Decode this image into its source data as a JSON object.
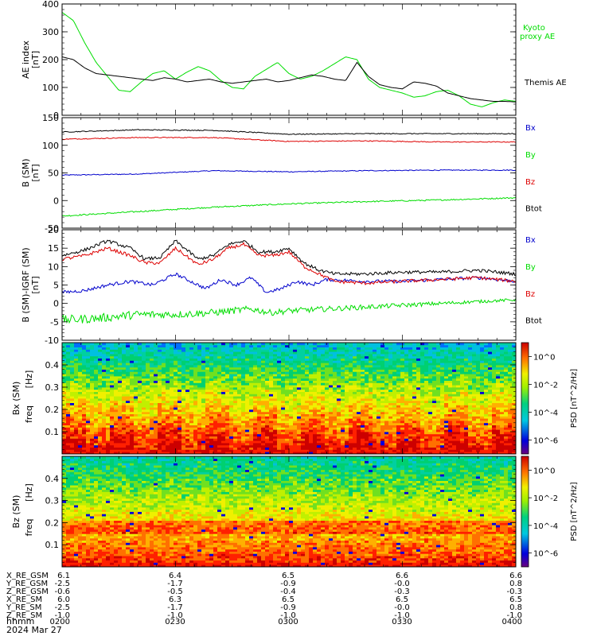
{
  "figure": {
    "date_label": "2024 Mar 27",
    "time_row_label": "hhmm"
  },
  "chart_data": [
    {
      "type": "line",
      "ylabel": "AE index",
      "yunit": "[nT]",
      "ylim": [
        0,
        400
      ],
      "yticks": [
        0,
        100,
        200,
        300,
        400
      ],
      "xlim": [
        0,
        120
      ],
      "series": [
        {
          "name": "Kyoto proxy AE",
          "label_lines": [
            "Kyoto",
            "proxy AE"
          ],
          "color": "#00dd00",
          "x": [
            0,
            3,
            6,
            9,
            12,
            15,
            18,
            21,
            24,
            27,
            30,
            33,
            36,
            39,
            42,
            45,
            48,
            51,
            54,
            57,
            60,
            63,
            66,
            69,
            72,
            75,
            78,
            81,
            84,
            87,
            90,
            93,
            96,
            99,
            102,
            105,
            108,
            111,
            114,
            117,
            120
          ],
          "y": [
            370,
            340,
            260,
            190,
            140,
            90,
            85,
            120,
            150,
            160,
            130,
            155,
            175,
            160,
            125,
            100,
            95,
            140,
            165,
            190,
            150,
            130,
            140,
            160,
            185,
            210,
            200,
            130,
            100,
            90,
            80,
            65,
            70,
            85,
            90,
            70,
            40,
            30,
            45,
            55,
            50
          ]
        },
        {
          "name": "Themis AE",
          "label_lines": [
            "Themis AE"
          ],
          "color": "#000000",
          "x": [
            0,
            3,
            6,
            9,
            12,
            15,
            18,
            21,
            24,
            27,
            30,
            33,
            36,
            39,
            42,
            45,
            48,
            51,
            54,
            57,
            60,
            63,
            66,
            69,
            72,
            75,
            78,
            81,
            84,
            87,
            90,
            93,
            96,
            99,
            102,
            105,
            108,
            111,
            114,
            117,
            120
          ],
          "y": [
            210,
            200,
            170,
            150,
            145,
            140,
            135,
            130,
            125,
            135,
            130,
            120,
            125,
            130,
            120,
            115,
            120,
            125,
            130,
            120,
            125,
            135,
            145,
            140,
            130,
            125,
            190,
            140,
            110,
            100,
            95,
            120,
            115,
            105,
            80,
            70,
            60,
            55,
            50,
            50,
            48
          ]
        }
      ]
    },
    {
      "type": "line",
      "ylabel": "B (SM)",
      "yunit": "[nT]",
      "ylim": [
        -50,
        150
      ],
      "yticks": [
        -50,
        0,
        50,
        100,
        150
      ],
      "xlim": [
        0,
        120
      ],
      "series": [
        {
          "name": "Bx",
          "color": "#0000cc",
          "x": [
            0,
            20,
            40,
            60,
            80,
            100,
            120
          ],
          "y": [
            46,
            48,
            54,
            52,
            54,
            55,
            55
          ]
        },
        {
          "name": "By",
          "color": "#00dd00",
          "x": [
            0,
            20,
            40,
            60,
            80,
            100,
            120
          ],
          "y": [
            -28,
            -20,
            -12,
            -6,
            -2,
            1,
            5
          ]
        },
        {
          "name": "Bz",
          "color": "#dd0000",
          "x": [
            0,
            20,
            40,
            60,
            80,
            100,
            120
          ],
          "y": [
            111,
            114,
            114,
            107,
            108,
            106,
            106
          ]
        },
        {
          "name": "Btot",
          "color": "#000000",
          "x": [
            0,
            20,
            40,
            60,
            80,
            100,
            120
          ],
          "y": [
            124,
            128,
            127,
            120,
            121,
            121,
            121
          ]
        }
      ]
    },
    {
      "type": "line",
      "ylabel": "B (SM)-IGRF (SM)",
      "yunit": "[nT]",
      "ylim": [
        -10,
        20
      ],
      "yticks": [
        -10,
        -5,
        0,
        5,
        10,
        15,
        20
      ],
      "xlim": [
        0,
        120
      ],
      "series": [
        {
          "name": "Bx",
          "color": "#0000cc",
          "x": [
            0,
            6,
            12,
            18,
            24,
            30,
            34,
            38,
            42,
            46,
            50,
            54,
            58,
            62,
            66,
            70,
            80,
            90,
            100,
            110,
            120
          ],
          "y": [
            3,
            3.5,
            5,
            6,
            5,
            8,
            6,
            4,
            6.5,
            5,
            7,
            3,
            4,
            6,
            5,
            6.5,
            6,
            6,
            6.5,
            7,
            6
          ]
        },
        {
          "name": "By",
          "color": "#00dd00",
          "x": [
            0,
            10,
            20,
            30,
            40,
            50,
            55,
            60,
            70,
            80,
            90,
            100,
            110,
            120
          ],
          "y": [
            -4.5,
            -4,
            -3,
            -3,
            -2.5,
            -1.5,
            -2.5,
            -2,
            -1.5,
            -1,
            -0.5,
            0,
            0.5,
            1
          ]
        },
        {
          "name": "Bz",
          "color": "#dd0000",
          "x": [
            0,
            6,
            12,
            18,
            22,
            26,
            30,
            36,
            40,
            44,
            48,
            52,
            56,
            60,
            64,
            68,
            72,
            80,
            90,
            100,
            110,
            120
          ],
          "y": [
            12,
            13,
            15,
            13,
            11,
            11,
            15,
            10.5,
            12,
            15,
            16,
            13,
            13,
            14,
            10,
            8,
            6,
            5.5,
            6,
            6.5,
            7,
            6
          ]
        },
        {
          "name": "Btot",
          "color": "#000000",
          "x": [
            0,
            6,
            12,
            18,
            22,
            26,
            30,
            36,
            40,
            44,
            48,
            52,
            56,
            60,
            64,
            68,
            72,
            80,
            90,
            100,
            110,
            120
          ],
          "y": [
            13,
            14.5,
            17,
            15,
            12,
            12.5,
            17,
            12,
            13,
            16,
            17,
            14,
            14,
            15,
            11,
            9,
            8,
            8,
            8.5,
            8.5,
            9,
            8
          ]
        }
      ]
    },
    {
      "type": "heatmap",
      "ylabel": "Bx (SM)",
      "ylabel2": "freq",
      "yunit": "[Hz]",
      "ylim": [
        0,
        0.5
      ],
      "yticks": [
        0.1,
        0.2,
        0.3,
        0.4
      ],
      "colorbar": {
        "label": "PSD [nT^2/Hz]",
        "ticks": [
          "10^0",
          "10^-2",
          "10^-4",
          "10^-6"
        ],
        "exponents": [
          0,
          -2,
          -4,
          -6
        ],
        "min_exp": -7,
        "max_exp": 1
      }
    },
    {
      "type": "heatmap",
      "ylabel": "Bz (SM)",
      "ylabel2": "freq",
      "yunit": "[Hz]",
      "ylim": [
        0,
        0.5
      ],
      "yticks": [
        0.1,
        0.2,
        0.3,
        0.4
      ],
      "colorbar": {
        "label": "PSD [nT^2/Hz]",
        "ticks": [
          "10^0",
          "10^-2",
          "10^-4",
          "10^-6"
        ],
        "exponents": [
          0,
          -2,
          -4,
          -6
        ],
        "min_exp": -7,
        "max_exp": 1
      }
    }
  ],
  "ephemeris": {
    "rows": [
      {
        "label": "X_RE_GSM",
        "values": [
          "6.1",
          "6.4",
          "6.5",
          "6.6",
          "6.6"
        ]
      },
      {
        "label": "Y_RE_GSM",
        "values": [
          "-2.5",
          "-1.7",
          "-0.9",
          "-0.0",
          "0.8"
        ]
      },
      {
        "label": "Z_RE_GSM",
        "values": [
          "-0.6",
          "-0.5",
          "-0.4",
          "-0.3",
          "-0.3"
        ]
      },
      {
        "label": "X_RE_SM",
        "values": [
          "6.0",
          "6.3",
          "6.5",
          "6.5",
          "6.5"
        ]
      },
      {
        "label": "Y_RE_SM",
        "values": [
          "-2.5",
          "-1.7",
          "-0.9",
          "-0.0",
          "0.8"
        ]
      },
      {
        "label": "Z_RE_SM",
        "values": [
          "-1.0",
          "-1.0",
          "-1.0",
          "-1.0",
          "-1.0"
        ]
      }
    ],
    "times": [
      "0200",
      "0230",
      "0300",
      "0330",
      "0400"
    ]
  }
}
